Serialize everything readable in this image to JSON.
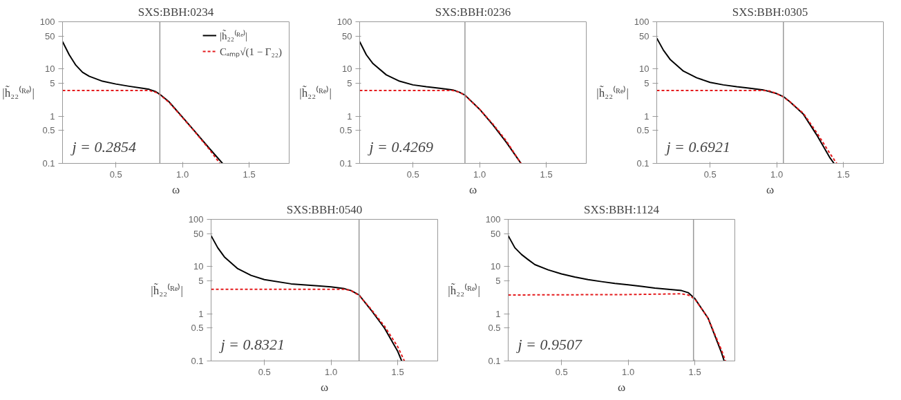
{
  "chart_data": [
    {
      "type": "line",
      "title": "SXS:BBH:0234",
      "xlabel": "ω",
      "ylabel": "|h̃₂₂⁽ᴿᵉ⁾|",
      "log": "y",
      "xlim": [
        0.1,
        1.8
      ],
      "ylim": [
        0.1,
        100
      ],
      "xticks": [
        {
          "value": 0.5,
          "label": "0.5"
        },
        {
          "value": 1.0,
          "label": "1.0"
        },
        {
          "value": 1.5,
          "label": "1.5"
        }
      ],
      "yticks": [
        0.1,
        0.5,
        1,
        5,
        10,
        50,
        100
      ],
      "grid": false,
      "legend": "top right",
      "annotations": [
        "j = 0.2854"
      ],
      "ref_lines": [
        {
          "axis": "x",
          "value": 0.83,
          "color": "#999999"
        }
      ],
      "series": [
        {
          "name": "|h̃₂₂⁽ᴿᵉ⁾|",
          "color": "#000000",
          "line_style": "solid",
          "x": [
            0.1,
            0.15,
            0.2,
            0.25,
            0.3,
            0.4,
            0.5,
            0.6,
            0.7,
            0.75,
            0.8,
            0.83,
            0.9,
            1.0,
            1.1,
            1.2,
            1.3
          ],
          "values": [
            38,
            20,
            12,
            8.5,
            7,
            5.5,
            4.8,
            4.3,
            3.9,
            3.7,
            3.3,
            2.9,
            2.0,
            0.95,
            0.45,
            0.21,
            0.1
          ]
        },
        {
          "name": "Cₐₘₚ√(1 − Γ₂₂)",
          "color": "#e41a1c",
          "line_style": "dashed",
          "x": [
            0.1,
            0.75,
            0.8,
            0.83,
            0.9,
            1.0,
            1.1,
            1.2,
            1.28
          ],
          "values": [
            3.5,
            3.5,
            3.2,
            2.85,
            1.95,
            0.93,
            0.44,
            0.2,
            0.1
          ]
        }
      ]
    },
    {
      "type": "line",
      "title": "SXS:BBH:0236",
      "xlabel": "ω",
      "ylabel": "|h̃₂₂⁽ᴿᵉ⁾|",
      "log": "y",
      "xlim": [
        0.1,
        1.8
      ],
      "ylim": [
        0.1,
        100
      ],
      "xticks": [
        {
          "value": 0.5,
          "label": "0.5"
        },
        {
          "value": 1.0,
          "label": "1.0"
        },
        {
          "value": 1.5,
          "label": "1.5"
        }
      ],
      "yticks": [
        0.1,
        0.5,
        1,
        5,
        10,
        50,
        100
      ],
      "grid": false,
      "annotations": [
        "j = 0.4269"
      ],
      "ref_lines": [
        {
          "axis": "x",
          "value": 0.89,
          "color": "#999999"
        }
      ],
      "series": [
        {
          "color": "#000000",
          "line_style": "solid",
          "x": [
            0.1,
            0.15,
            0.2,
            0.3,
            0.4,
            0.5,
            0.6,
            0.7,
            0.8,
            0.85,
            0.89,
            1.0,
            1.1,
            1.2,
            1.3,
            1.31
          ],
          "values": [
            38,
            20,
            13,
            7.5,
            5.5,
            4.6,
            4.2,
            3.9,
            3.6,
            3.2,
            2.8,
            1.4,
            0.65,
            0.28,
            0.11,
            0.1
          ]
        },
        {
          "color": "#e41a1c",
          "line_style": "dashed",
          "x": [
            0.1,
            0.8,
            0.85,
            0.89,
            1.0,
            1.1,
            1.2,
            1.31
          ],
          "values": [
            3.5,
            3.5,
            3.2,
            2.75,
            1.4,
            0.68,
            0.3,
            0.1
          ]
        }
      ]
    },
    {
      "type": "line",
      "title": "SXS:BBH:0305",
      "xlabel": "ω",
      "ylabel": "|h̃₂₂⁽ᴿᵉ⁾|",
      "log": "y",
      "xlim": [
        0.1,
        1.8
      ],
      "ylim": [
        0.1,
        100
      ],
      "xticks": [
        {
          "value": 0.5,
          "label": "0.5"
        },
        {
          "value": 1.0,
          "label": "1.0"
        },
        {
          "value": 1.5,
          "label": "1.5"
        }
      ],
      "yticks": [
        0.1,
        0.5,
        1,
        5,
        10,
        50,
        100
      ],
      "grid": false,
      "annotations": [
        "j = 0.6921"
      ],
      "ref_lines": [
        {
          "axis": "x",
          "value": 1.05,
          "color": "#999999"
        }
      ],
      "series": [
        {
          "color": "#000000",
          "line_style": "solid",
          "x": [
            0.1,
            0.15,
            0.2,
            0.3,
            0.4,
            0.5,
            0.6,
            0.7,
            0.8,
            0.9,
            1.0,
            1.05,
            1.1,
            1.2,
            1.3,
            1.4,
            1.43
          ],
          "values": [
            45,
            25,
            16,
            9,
            6.5,
            5.2,
            4.6,
            4.2,
            3.9,
            3.6,
            3.0,
            2.6,
            2.0,
            1.1,
            0.4,
            0.13,
            0.1
          ]
        },
        {
          "color": "#e41a1c",
          "line_style": "dashed",
          "x": [
            0.1,
            0.9,
            0.95,
            1.0,
            1.05,
            1.1,
            1.2,
            1.3,
            1.4,
            1.45
          ],
          "values": [
            3.5,
            3.5,
            3.4,
            3.0,
            2.55,
            2.0,
            1.15,
            0.45,
            0.16,
            0.1
          ]
        }
      ]
    },
    {
      "type": "line",
      "title": "SXS:BBH:0540",
      "xlabel": "ω",
      "ylabel": "|h̃₂₂⁽ᴿᵉ⁾|",
      "log": "y",
      "xlim": [
        0.1,
        1.8
      ],
      "ylim": [
        0.1,
        100
      ],
      "xticks": [
        {
          "value": 0.5,
          "label": "0.5"
        },
        {
          "value": 1.0,
          "label": "1.0"
        },
        {
          "value": 1.5,
          "label": "1.5"
        }
      ],
      "yticks": [
        0.1,
        0.5,
        1,
        5,
        10,
        50,
        100
      ],
      "grid": false,
      "annotations": [
        "j = 0.8321"
      ],
      "ref_lines": [
        {
          "axis": "x",
          "value": 1.21,
          "color": "#999999"
        }
      ],
      "series": [
        {
          "color": "#000000",
          "line_style": "solid",
          "x": [
            0.1,
            0.15,
            0.2,
            0.3,
            0.4,
            0.5,
            0.7,
            0.9,
            1.0,
            1.1,
            1.15,
            1.21,
            1.3,
            1.4,
            1.5,
            1.53
          ],
          "values": [
            45,
            25,
            16,
            9,
            6.5,
            5.3,
            4.3,
            3.9,
            3.7,
            3.4,
            3.1,
            2.5,
            1.2,
            0.5,
            0.16,
            0.1
          ]
        },
        {
          "color": "#e41a1c",
          "line_style": "dashed",
          "x": [
            0.1,
            1.1,
            1.15,
            1.21,
            1.3,
            1.4,
            1.5,
            1.55
          ],
          "values": [
            3.3,
            3.3,
            3.1,
            2.45,
            1.25,
            0.55,
            0.2,
            0.1
          ]
        }
      ]
    },
    {
      "type": "line",
      "title": "SXS:BBH:1124",
      "xlabel": "ω",
      "ylabel": "|h̃₂₂⁽ᴿᵉ⁾|",
      "log": "y",
      "xlim": [
        0.1,
        1.8
      ],
      "ylim": [
        0.1,
        100
      ],
      "xticks": [
        {
          "value": 0.5,
          "label": "0.5"
        },
        {
          "value": 1.0,
          "label": "1.0"
        },
        {
          "value": 1.5,
          "label": "1.5"
        }
      ],
      "yticks": [
        0.1,
        0.5,
        1,
        5,
        10,
        50,
        100
      ],
      "grid": false,
      "annotations": [
        "j = 0.9507"
      ],
      "ref_lines": [
        {
          "axis": "x",
          "value": 1.49,
          "color": "#999999"
        }
      ],
      "series": [
        {
          "color": "#000000",
          "line_style": "solid",
          "x": [
            0.1,
            0.15,
            0.2,
            0.25,
            0.3,
            0.4,
            0.5,
            0.6,
            0.7,
            0.8,
            0.9,
            1.0,
            1.1,
            1.2,
            1.3,
            1.4,
            1.45,
            1.5,
            1.6,
            1.7,
            1.72
          ],
          "values": [
            45,
            25,
            18,
            14,
            11,
            8.5,
            7,
            6,
            5.3,
            4.8,
            4.4,
            4.1,
            3.8,
            3.5,
            3.3,
            3.1,
            2.8,
            2.1,
            0.8,
            0.15,
            0.1
          ]
        },
        {
          "color": "#e41a1c",
          "line_style": "dashed",
          "x": [
            0.1,
            1.0,
            1.4,
            1.45,
            1.5,
            1.6,
            1.7,
            1.73
          ],
          "values": [
            2.5,
            2.55,
            2.65,
            2.5,
            2.05,
            0.8,
            0.17,
            0.1
          ]
        }
      ]
    }
  ]
}
